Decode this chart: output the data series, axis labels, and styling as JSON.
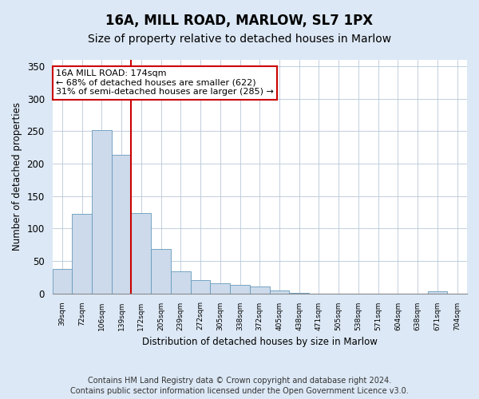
{
  "title1": "16A, MILL ROAD, MARLOW, SL7 1PX",
  "title2": "Size of property relative to detached houses in Marlow",
  "xlabel": "Distribution of detached houses by size in Marlow",
  "ylabel": "Number of detached properties",
  "bar_labels": [
    "39sqm",
    "72sqm",
    "106sqm",
    "139sqm",
    "172sqm",
    "205sqm",
    "239sqm",
    "272sqm",
    "305sqm",
    "338sqm",
    "372sqm",
    "405sqm",
    "438sqm",
    "471sqm",
    "505sqm",
    "538sqm",
    "571sqm",
    "604sqm",
    "638sqm",
    "671sqm",
    "704sqm"
  ],
  "bar_values": [
    37,
    123,
    252,
    213,
    124,
    68,
    34,
    20,
    16,
    13,
    10,
    5,
    1,
    0,
    0,
    0,
    0,
    0,
    0,
    3,
    0
  ],
  "bar_color": "#ccdaeb",
  "bar_edge_color": "#6699bb",
  "vline_x": 4,
  "vline_color": "#cc0000",
  "annotation_text": "16A MILL ROAD: 174sqm\n← 68% of detached houses are smaller (622)\n31% of semi-detached houses are larger (285) →",
  "annotation_box_color": "#ffffff",
  "annotation_box_edge": "#cc0000",
  "ylim": [
    0,
    360
  ],
  "yticks": [
    0,
    50,
    100,
    150,
    200,
    250,
    300,
    350
  ],
  "footer1": "Contains HM Land Registry data © Crown copyright and database right 2024.",
  "footer2": "Contains public sector information licensed under the Open Government Licence v3.0.",
  "bg_color": "#dce8f5",
  "plot_bg_color": "#ffffff",
  "title1_fontsize": 12,
  "title2_fontsize": 10,
  "footer_fontsize": 7
}
